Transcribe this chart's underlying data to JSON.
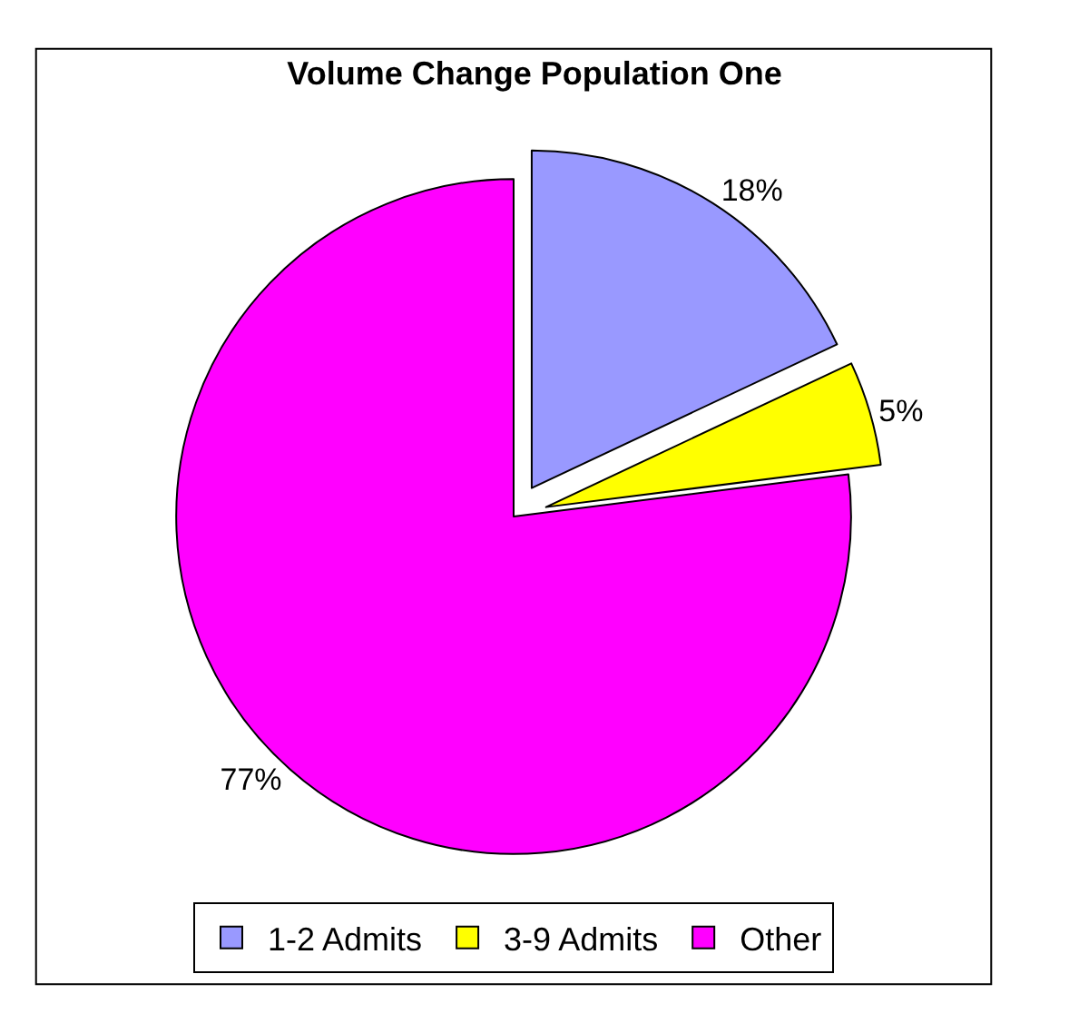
{
  "chart_data": {
    "type": "pie",
    "title": "Volume Change Population One",
    "categories": [
      "1-2 Admits",
      "3-9 Admits",
      "Other"
    ],
    "values": [
      18,
      5,
      77
    ],
    "value_labels": [
      "18%",
      "5%",
      "77%"
    ],
    "colors": [
      "#9999ff",
      "#ffff00",
      "#ff00ff"
    ],
    "legend": "bottom"
  }
}
